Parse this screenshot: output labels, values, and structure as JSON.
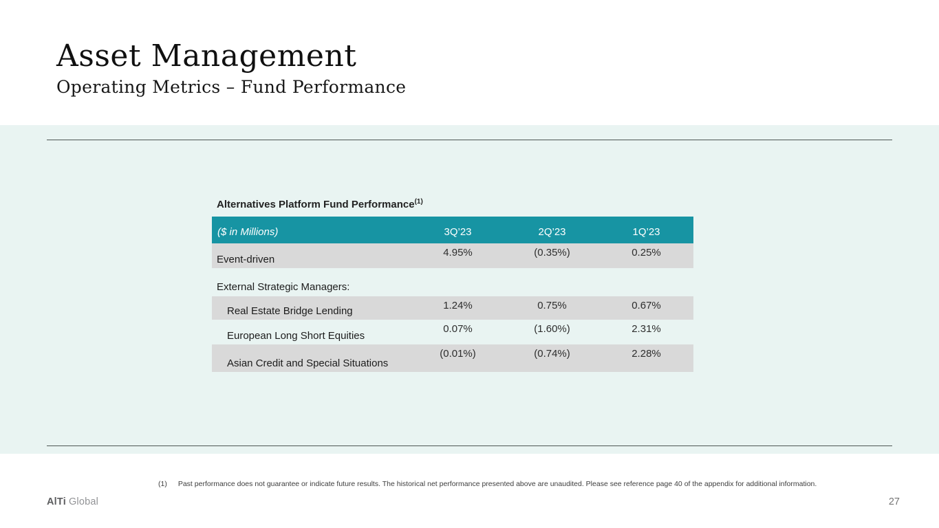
{
  "slide": {
    "title": "Asset Management",
    "subtitle": "Operating Metrics – Fund Performance",
    "page_number": "27"
  },
  "table": {
    "title": "Alternatives Platform Fund Performance",
    "title_footnote_ref": "(1)",
    "unit_label": "($ in Millions)",
    "columns": [
      "3Q’23",
      "2Q’23",
      "1Q’23"
    ],
    "rows": [
      {
        "label": "Event-driven",
        "values": [
          "4.95%",
          "(0.35%)",
          "0.25%"
        ]
      },
      {
        "label": "External Strategic Managers:",
        "values": []
      },
      {
        "label": "Real Estate Bridge Lending",
        "values": [
          "1.24%",
          "0.75%",
          "0.67%"
        ]
      },
      {
        "label": "European Long Short Equities",
        "values": [
          "0.07%",
          "(1.60%)",
          "2.31%"
        ]
      },
      {
        "label": "Asian Credit and Special Situations",
        "values": [
          "(0.01%)",
          "(0.74%)",
          "2.28%"
        ]
      }
    ]
  },
  "footnote": {
    "ref": "(1)",
    "text": "Past performance does not guarantee or indicate future results. The historical net performance presented above are unaudited. Please see reference page 40 of the appendix for additional information."
  },
  "footer": {
    "brand_bold": "AlTi",
    "brand_light": "Global"
  },
  "colors": {
    "accent_teal": "#1794a3",
    "band_gray": "#d9d9d9",
    "panel_mint": "#e9f4f2",
    "rule_dark": "#4c5553"
  }
}
